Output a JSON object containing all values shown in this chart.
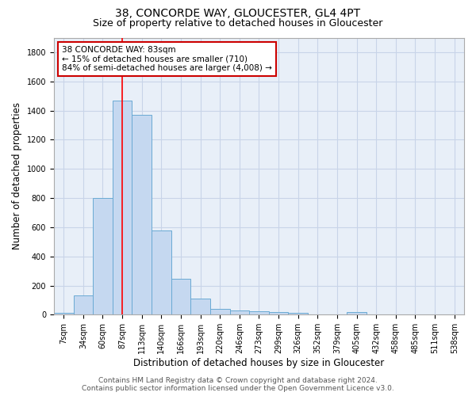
{
  "title1": "38, CONCORDE WAY, GLOUCESTER, GL4 4PT",
  "title2": "Size of property relative to detached houses in Gloucester",
  "xlabel": "Distribution of detached houses by size in Gloucester",
  "ylabel": "Number of detached properties",
  "categories": [
    "7sqm",
    "34sqm",
    "60sqm",
    "87sqm",
    "113sqm",
    "140sqm",
    "166sqm",
    "193sqm",
    "220sqm",
    "246sqm",
    "273sqm",
    "299sqm",
    "326sqm",
    "352sqm",
    "379sqm",
    "405sqm",
    "432sqm",
    "458sqm",
    "485sqm",
    "511sqm",
    "538sqm"
  ],
  "values": [
    15,
    130,
    800,
    1470,
    1370,
    575,
    245,
    110,
    40,
    30,
    25,
    20,
    15,
    0,
    0,
    20,
    0,
    0,
    0,
    0,
    0
  ],
  "bar_color": "#c5d8f0",
  "bar_edge_color": "#6aaad4",
  "red_line_x": 3.0,
  "annotation_text": "38 CONCORDE WAY: 83sqm\n← 15% of detached houses are smaller (710)\n84% of semi-detached houses are larger (4,008) →",
  "annotation_box_color": "#ffffff",
  "annotation_box_edge": "#cc0000",
  "ylim": [
    0,
    1900
  ],
  "yticks": [
    0,
    200,
    400,
    600,
    800,
    1000,
    1200,
    1400,
    1600,
    1800
  ],
  "grid_color": "#c8d4e8",
  "bg_color": "#e8eff8",
  "footer1": "Contains HM Land Registry data © Crown copyright and database right 2024.",
  "footer2": "Contains public sector information licensed under the Open Government Licence v3.0.",
  "title1_fontsize": 10,
  "title2_fontsize": 9,
  "xlabel_fontsize": 8.5,
  "ylabel_fontsize": 8.5,
  "tick_fontsize": 7,
  "annot_fontsize": 7.5,
  "footer_fontsize": 6.5
}
